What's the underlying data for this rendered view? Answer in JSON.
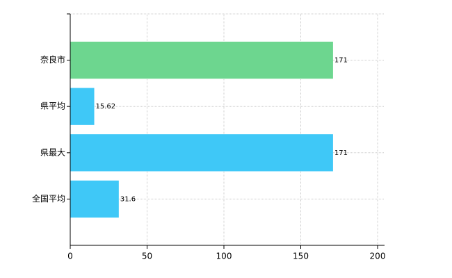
{
  "chart_data": {
    "type": "bar",
    "orientation": "horizontal",
    "categories": [
      "奈良市",
      "県平均",
      "県最大",
      "全国平均"
    ],
    "values": [
      171,
      15.62,
      171,
      31.6
    ],
    "colors": [
      "#6dd68f",
      "#3fc8f7",
      "#3fc8f7",
      "#3fc8f7"
    ],
    "xlim": [
      0,
      200
    ],
    "xticks": [
      0,
      50,
      100,
      150,
      200
    ],
    "grid": true
  }
}
